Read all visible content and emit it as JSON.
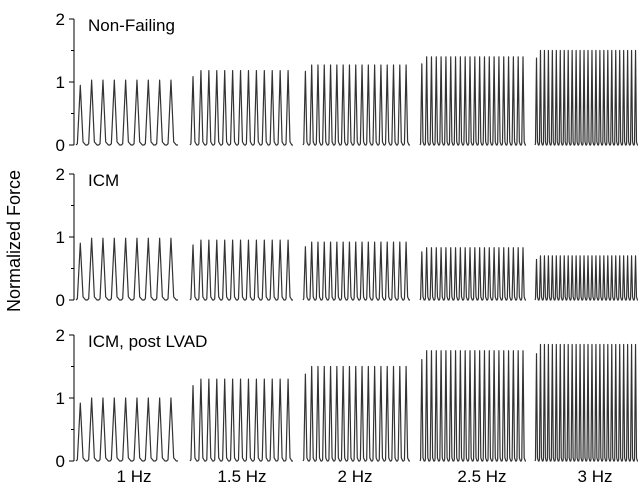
{
  "chart_data": {
    "type": "line",
    "ylabel": "Normalized Force",
    "x_categories": [
      "1 Hz",
      "1.5 Hz",
      "2 Hz",
      "2.5 Hz",
      "3 Hz"
    ],
    "frequencies_hz": [
      1,
      1.5,
      2,
      2.5,
      3
    ],
    "ylim": [
      0,
      2
    ],
    "yticks": [
      "0",
      "1",
      "2"
    ],
    "trace_color": "#333333",
    "panels": [
      {
        "title": "Non-Failing",
        "series": [
          {
            "frequency": "1 Hz",
            "peaks": 9,
            "peak_force": 1.03
          },
          {
            "frequency": "1.5 Hz",
            "peaks": 13,
            "peak_force": 1.18
          },
          {
            "frequency": "2 Hz",
            "peaks": 17,
            "peak_force": 1.27
          },
          {
            "frequency": "2.5 Hz",
            "peaks": 22,
            "peak_force": 1.4
          },
          {
            "frequency": "3 Hz",
            "peaks": 26,
            "peak_force": 1.5
          }
        ]
      },
      {
        "title": "ICM",
        "series": [
          {
            "frequency": "1 Hz",
            "peaks": 9,
            "peak_force": 0.98
          },
          {
            "frequency": "1.5 Hz",
            "peaks": 13,
            "peak_force": 0.95
          },
          {
            "frequency": "2 Hz",
            "peaks": 17,
            "peak_force": 0.92
          },
          {
            "frequency": "2.5 Hz",
            "peaks": 22,
            "peak_force": 0.83
          },
          {
            "frequency": "3 Hz",
            "peaks": 26,
            "peak_force": 0.7
          }
        ]
      },
      {
        "title": "ICM, post LVAD",
        "series": [
          {
            "frequency": "1 Hz",
            "peaks": 9,
            "peak_force": 1.0
          },
          {
            "frequency": "1.5 Hz",
            "peaks": 13,
            "peak_force": 1.3
          },
          {
            "frequency": "2 Hz",
            "peaks": 17,
            "peak_force": 1.5
          },
          {
            "frequency": "2.5 Hz",
            "peaks": 22,
            "peak_force": 1.75
          },
          {
            "frequency": "3 Hz",
            "peaks": 26,
            "peak_force": 1.85
          }
        ]
      }
    ]
  }
}
